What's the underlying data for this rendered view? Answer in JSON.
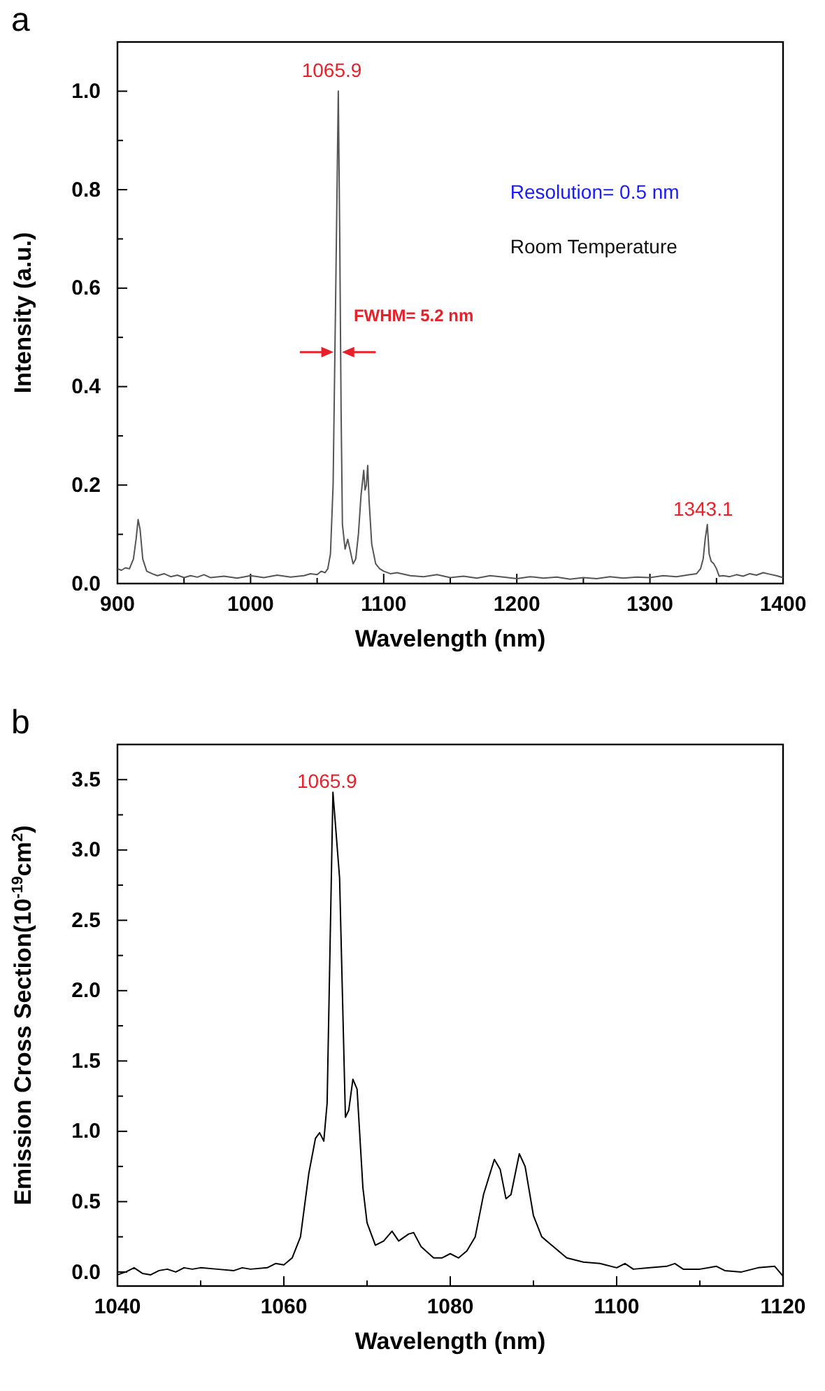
{
  "chart_data": [
    {
      "type": "line",
      "title": "a",
      "xlabel": "Wavelength (nm)",
      "ylabel": "Intensity (a.u.)",
      "xlim": [
        900,
        1400
      ],
      "ylim": [
        0,
        1.1
      ],
      "xticks": [
        900,
        {
          "value": 950,
          "label": null
        },
        1000,
        {
          "value": 1050,
          "label": null
        },
        1100,
        {
          "value": 1150,
          "label": null
        },
        1200,
        {
          "value": 1250,
          "label": null
        },
        1300,
        {
          "value": 1350,
          "label": null
        },
        1400
      ],
      "yticks": [
        {
          "value": 0,
          "label": "0.0"
        },
        {
          "value": 0.1,
          "label": null
        },
        0.2,
        {
          "value": 0.3,
          "label": null
        },
        0.4,
        {
          "value": 0.5,
          "label": null
        },
        0.6,
        {
          "value": 0.7,
          "label": null
        },
        0.8,
        {
          "value": 0.9,
          "label": null
        },
        {
          "value": 1.0,
          "label": "1.0"
        }
      ],
      "grid": false,
      "marker": "none",
      "line_style": "solid",
      "annotations": [
        "1065.9",
        "FWHM= 5.2 nm",
        "Resolution= 0.5 nm",
        "Room Temperature",
        "1343.1"
      ],
      "series": [
        {
          "color": "#555555",
          "x": [
            900,
            903,
            906,
            909,
            912,
            914,
            915.5,
            917,
            919,
            922,
            926,
            930,
            935,
            940,
            945,
            950,
            955,
            960,
            965,
            970,
            980,
            990,
            1000,
            1010,
            1020,
            1030,
            1040,
            1045,
            1050,
            1053,
            1056,
            1058,
            1060,
            1062,
            1064,
            1065.9,
            1067,
            1068,
            1069,
            1071,
            1073,
            1075,
            1077,
            1079,
            1081,
            1083,
            1085,
            1086,
            1087,
            1088,
            1089,
            1091,
            1094,
            1097,
            1100,
            1105,
            1110,
            1120,
            1130,
            1140,
            1150,
            1160,
            1170,
            1180,
            1190,
            1200,
            1210,
            1220,
            1230,
            1240,
            1250,
            1260,
            1270,
            1280,
            1290,
            1300,
            1310,
            1320,
            1330,
            1335,
            1338,
            1340,
            1341.5,
            1343.1,
            1344.5,
            1346,
            1348,
            1350,
            1352,
            1355,
            1360,
            1365,
            1370,
            1375,
            1380,
            1385,
            1390,
            1395,
            1400
          ],
          "values": [
            0.03,
            0.027,
            0.032,
            0.03,
            0.05,
            0.09,
            0.13,
            0.11,
            0.05,
            0.025,
            0.02,
            0.016,
            0.02,
            0.014,
            0.017,
            0.012,
            0.016,
            0.013,
            0.018,
            0.012,
            0.015,
            0.011,
            0.016,
            0.012,
            0.017,
            0.013,
            0.016,
            0.02,
            0.018,
            0.025,
            0.022,
            0.03,
            0.06,
            0.2,
            0.6,
            1.0,
            0.7,
            0.35,
            0.12,
            0.07,
            0.09,
            0.065,
            0.04,
            0.05,
            0.1,
            0.18,
            0.23,
            0.19,
            0.2,
            0.24,
            0.17,
            0.08,
            0.04,
            0.03,
            0.025,
            0.02,
            0.022,
            0.016,
            0.014,
            0.018,
            0.012,
            0.015,
            0.011,
            0.016,
            0.013,
            0.01,
            0.014,
            0.011,
            0.013,
            0.009,
            0.012,
            0.01,
            0.014,
            0.011,
            0.013,
            0.012,
            0.016,
            0.014,
            0.018,
            0.02,
            0.03,
            0.05,
            0.09,
            0.12,
            0.06,
            0.045,
            0.04,
            0.03,
            0.015,
            0.016,
            0.014,
            0.018,
            0.015,
            0.02,
            0.017,
            0.022,
            0.019,
            0.016,
            0.012
          ]
        }
      ]
    },
    {
      "type": "line",
      "title": "b",
      "xlabel": "Wavelength (nm)",
      "ylabel": "Emission Cross Section(10$^{-19}$cm$^{2}$)",
      "xlim": [
        1040,
        1120
      ],
      "ylim": [
        -0.1,
        3.75
      ],
      "xticks": [
        1040,
        {
          "value": 1050,
          "label": null
        },
        1060,
        {
          "value": 1070,
          "label": null
        },
        1080,
        {
          "value": 1090,
          "label": null
        },
        1100,
        {
          "value": 1110,
          "label": null
        },
        1120
      ],
      "yticks": [
        {
          "value": 0,
          "label": "0.0"
        },
        {
          "value": 0.25,
          "label": null
        },
        0.5,
        {
          "value": 0.75,
          "label": null
        },
        {
          "value": 1,
          "label": "1.0"
        },
        {
          "value": 1.25,
          "label": null
        },
        1.5,
        {
          "value": 1.75,
          "label": null
        },
        {
          "value": 2,
          "label": "2.0"
        },
        {
          "value": 2.25,
          "label": null
        },
        2.5,
        {
          "value": 2.75,
          "label": null
        },
        {
          "value": 3,
          "label": "3.0"
        },
        {
          "value": 3.25,
          "label": null
        },
        3.5
      ],
      "grid": false,
      "marker": "none",
      "line_style": "solid",
      "annotations": [
        "1065.9"
      ],
      "series": [
        {
          "color": "#000000",
          "x": [
            1040,
            1041,
            1042,
            1043,
            1044,
            1045,
            1046,
            1047,
            1048,
            1049,
            1050,
            1052,
            1054,
            1055,
            1056,
            1058,
            1059,
            1060,
            1061,
            1062,
            1063,
            1063.8,
            1064.3,
            1064.8,
            1065.2,
            1065.9,
            1066.7,
            1067.4,
            1067.8,
            1068.3,
            1068.8,
            1069.5,
            1070,
            1071,
            1072,
            1073,
            1073.8,
            1075,
            1075.6,
            1076.5,
            1078,
            1079,
            1080,
            1081,
            1082,
            1083,
            1084,
            1085.3,
            1086,
            1086.7,
            1087.3,
            1088.3,
            1089,
            1090,
            1091,
            1092,
            1094,
            1096,
            1098,
            1100,
            1101,
            1102,
            1104,
            1106,
            1107,
            1108,
            1110,
            1112,
            1113,
            1115,
            1117,
            1119,
            1120
          ],
          "values": [
            -0.02,
            0.0,
            0.03,
            -0.01,
            -0.02,
            0.01,
            0.02,
            0.0,
            0.03,
            0.02,
            0.03,
            0.02,
            0.01,
            0.03,
            0.02,
            0.03,
            0.06,
            0.05,
            0.1,
            0.25,
            0.7,
            0.95,
            0.99,
            0.93,
            1.2,
            3.41,
            2.8,
            1.1,
            1.15,
            1.37,
            1.3,
            0.6,
            0.35,
            0.19,
            0.22,
            0.29,
            0.22,
            0.27,
            0.28,
            0.18,
            0.1,
            0.1,
            0.13,
            0.1,
            0.15,
            0.25,
            0.55,
            0.8,
            0.73,
            0.52,
            0.55,
            0.84,
            0.75,
            0.4,
            0.25,
            0.2,
            0.1,
            0.07,
            0.06,
            0.03,
            0.06,
            0.02,
            0.03,
            0.04,
            0.06,
            0.02,
            0.02,
            0.04,
            0.01,
            0.0,
            0.03,
            0.04,
            -0.03
          ]
        }
      ]
    }
  ]
}
